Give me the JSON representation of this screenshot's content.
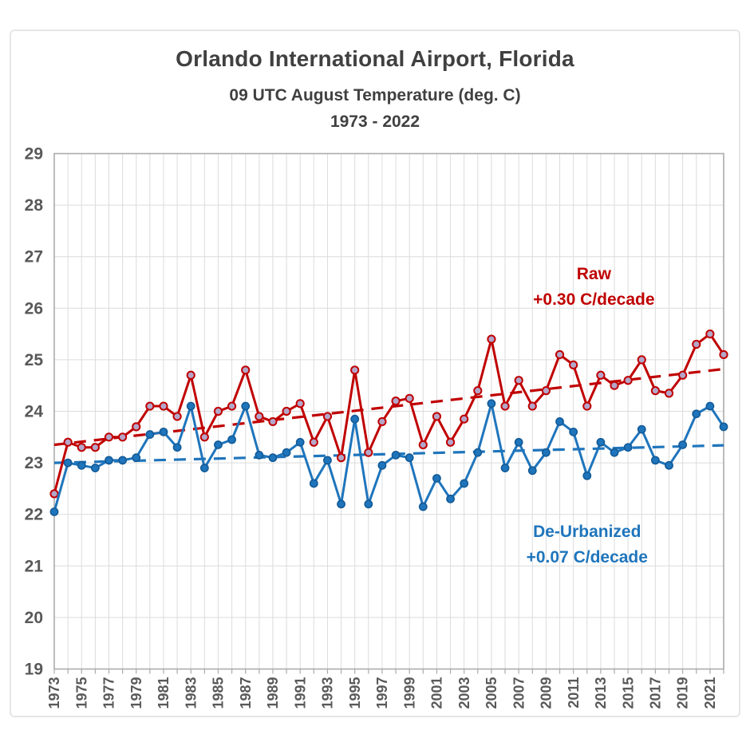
{
  "header": {
    "title": "Orlando International Airport, Florida",
    "subtitle": "09 UTC August Temperature (deg. C)",
    "period": "1973 - 2022"
  },
  "annotations": {
    "raw": {
      "line1": "Raw",
      "line2": "+0.30 C/decade",
      "color": "#C00000",
      "anchor_year": 2012.5,
      "anchor_value": 26.4
    },
    "deurbanized": {
      "line1": "De-Urbanized",
      "line2": "+0.07 C/decade",
      "color": "#1F75BC",
      "anchor_year": 2012,
      "anchor_value": 21.4
    }
  },
  "colors": {
    "raw_line": "#C00000",
    "raw_marker_fill": "#B3A6C9",
    "deurb_line": "#1F75BC",
    "deurb_marker_stroke": "#135A96",
    "grid": "#DCDCDC",
    "frame": "#ABABAB",
    "tick_text": "#595959",
    "title_text": "#404040"
  },
  "chart_data": {
    "type": "line",
    "title": "Orlando International Airport, Florida",
    "subtitle": "09 UTC August Temperature (deg. C)",
    "period": "1973 - 2022",
    "xlim": [
      1973,
      2022
    ],
    "ylim": [
      19,
      29
    ],
    "ytick_step": 1,
    "yticks": [
      19,
      20,
      21,
      22,
      23,
      24,
      25,
      26,
      27,
      28,
      29
    ],
    "xtick_labels": [
      1973,
      1975,
      1977,
      1979,
      1981,
      1983,
      1985,
      1987,
      1989,
      1991,
      1993,
      1995,
      1997,
      1999,
      2001,
      2003,
      2005,
      2007,
      2009,
      2011,
      2013,
      2015,
      2017,
      2019,
      2021
    ],
    "grid": "both",
    "legend_position": "none",
    "x": [
      1973,
      1974,
      1975,
      1976,
      1977,
      1978,
      1979,
      1980,
      1981,
      1982,
      1983,
      1984,
      1985,
      1986,
      1987,
      1988,
      1989,
      1990,
      1991,
      1992,
      1993,
      1994,
      1995,
      1996,
      1997,
      1998,
      1999,
      2000,
      2001,
      2002,
      2003,
      2004,
      2005,
      2006,
      2007,
      2008,
      2009,
      2010,
      2011,
      2012,
      2013,
      2014,
      2015,
      2016,
      2017,
      2018,
      2019,
      2020,
      2021,
      2022
    ],
    "series": [
      {
        "name": "Raw",
        "trend": "+0.30 C/decade",
        "color": "#C00000",
        "values": [
          22.4,
          23.4,
          23.3,
          23.3,
          23.5,
          23.5,
          23.7,
          24.1,
          24.1,
          23.9,
          24.7,
          23.5,
          24.0,
          24.1,
          24.8,
          23.9,
          23.8,
          24.0,
          24.15,
          23.4,
          23.9,
          23.1,
          24.8,
          23.2,
          23.8,
          24.2,
          24.25,
          23.35,
          23.9,
          23.4,
          23.85,
          24.4,
          25.4,
          24.1,
          24.6,
          24.1,
          24.4,
          25.1,
          24.9,
          24.1,
          24.7,
          24.5,
          24.6,
          25.0,
          24.4,
          24.35,
          24.7,
          25.3,
          25.5,
          25.1
        ]
      },
      {
        "name": "De-Urbanized",
        "trend": "+0.07 C/decade",
        "color": "#1F75BC",
        "values": [
          22.05,
          23.0,
          22.95,
          22.9,
          23.05,
          23.05,
          23.1,
          23.55,
          23.6,
          23.3,
          24.1,
          22.9,
          23.35,
          23.45,
          24.1,
          23.15,
          23.1,
          23.2,
          23.4,
          22.6,
          23.05,
          22.2,
          23.85,
          22.2,
          22.95,
          23.15,
          23.1,
          22.15,
          22.7,
          22.3,
          22.6,
          23.2,
          24.15,
          22.9,
          23.4,
          22.85,
          23.2,
          23.8,
          23.6,
          22.75,
          23.4,
          23.2,
          23.3,
          23.65,
          23.05,
          22.95,
          23.35,
          23.95,
          24.1,
          23.7
        ]
      }
    ],
    "trendlines": [
      {
        "series": "Raw",
        "label": "+0.30 C/decade",
        "style": "dashed",
        "color": "#C00000",
        "x": [
          1973,
          2022
        ],
        "y": [
          23.35,
          24.82
        ]
      },
      {
        "series": "De-Urbanized",
        "label": "+0.07 C/decade",
        "style": "dashed",
        "color": "#1F75BC",
        "x": [
          1973,
          2022
        ],
        "y": [
          23.0,
          23.34
        ]
      }
    ]
  }
}
